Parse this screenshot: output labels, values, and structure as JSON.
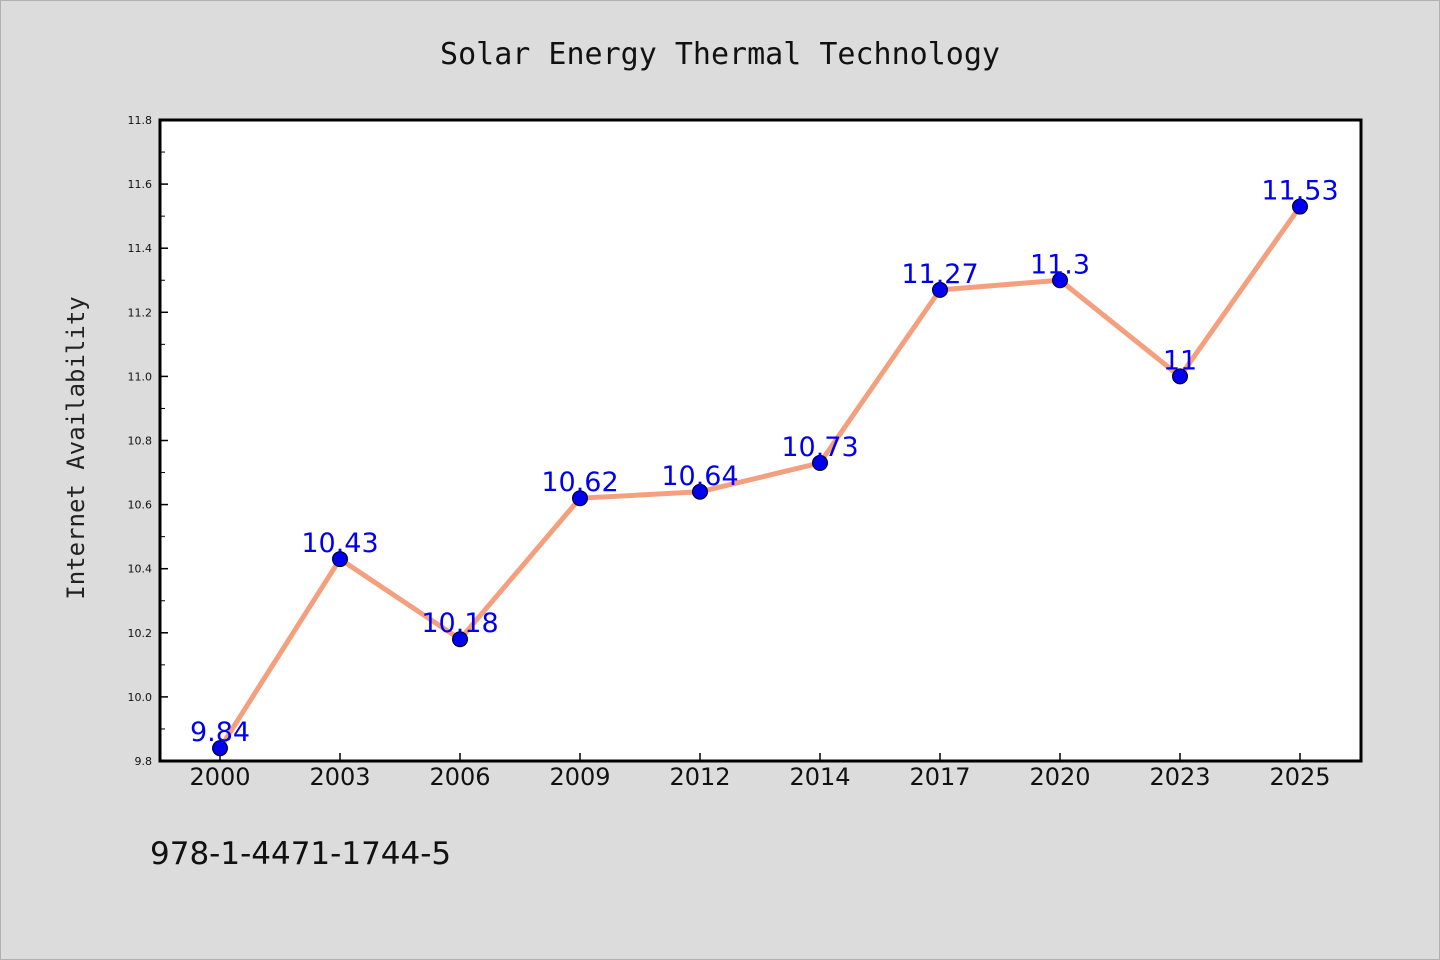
{
  "footnote": "978-1-4471-1744-5",
  "chart_data": {
    "type": "line",
    "title": "Solar Energy Thermal Technology",
    "xlabel": "",
    "ylabel": "Internet Availability",
    "categories": [
      "2000",
      "2003",
      "2006",
      "2009",
      "2012",
      "2014",
      "2017",
      "2020",
      "2023",
      "2025"
    ],
    "values": [
      9.84,
      10.43,
      10.18,
      10.62,
      10.64,
      10.73,
      11.27,
      11.3,
      11,
      11.53
    ],
    "data_labels": [
      "9.84",
      "10.43",
      "10.18",
      "10.62",
      "10.64",
      "10.73",
      "11.27",
      "11.3",
      "11",
      "11.53"
    ],
    "ylim": [
      9.8,
      11.8
    ],
    "yticks": [
      "9.8",
      "10.0",
      "10.2",
      "10.4",
      "10.6",
      "10.8",
      "11.0",
      "11.2",
      "11.4",
      "11.6",
      "11.8"
    ],
    "grid": false,
    "legend": "none",
    "colors": {
      "line": "#f4a07e",
      "marker": "#0000ee",
      "data_label": "#0000ee",
      "plot_background": "#ffffff",
      "figure_background": "#dcdcdc"
    }
  }
}
